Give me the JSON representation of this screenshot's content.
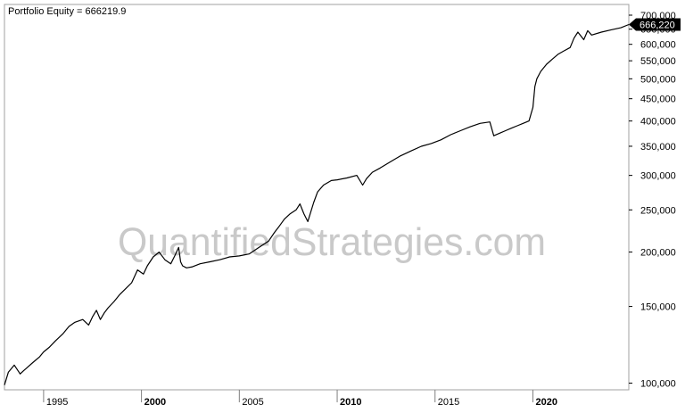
{
  "chart_data": {
    "type": "line",
    "title": "Portfolio Equity = 666219.9",
    "watermark": "QuantifiedStrategies.com",
    "y_scale": "log",
    "ylim": [
      97000,
      710000
    ],
    "xlim": [
      1993.0,
      2024.9
    ],
    "last_value_label": "666,220",
    "last_value": 666220,
    "grid": false,
    "colors": {
      "line": "#000000",
      "frame": "#a0a0a0",
      "axis_bg": "#ffffff",
      "last_badge": "#000000"
    },
    "x_ticks": [
      {
        "value": 1995,
        "label": "1995",
        "bold": false
      },
      {
        "value": 2000,
        "label": "2000",
        "bold": true
      },
      {
        "value": 2005,
        "label": "2005",
        "bold": false
      },
      {
        "value": 2010,
        "label": "2010",
        "bold": true
      },
      {
        "value": 2015,
        "label": "2015",
        "bold": false
      },
      {
        "value": 2020,
        "label": "2020",
        "bold": true
      }
    ],
    "y_ticks": [
      {
        "value": 100000,
        "label": "100,000"
      },
      {
        "value": 150000,
        "label": "150,000"
      },
      {
        "value": 200000,
        "label": "200,000"
      },
      {
        "value": 250000,
        "label": "250,000"
      },
      {
        "value": 300000,
        "label": "300,000"
      },
      {
        "value": 350000,
        "label": "350,000"
      },
      {
        "value": 400000,
        "label": "400,000"
      },
      {
        "value": 450000,
        "label": "450,000"
      },
      {
        "value": 500000,
        "label": "500,000"
      },
      {
        "value": 550000,
        "label": "550,000"
      },
      {
        "value": 600000,
        "label": "600,000"
      },
      {
        "value": 650000,
        "label": "650,000"
      },
      {
        "value": 700000,
        "label": "700,000"
      }
    ],
    "series": [
      {
        "x": [
          1993.0,
          1993.2,
          1993.5,
          1993.8,
          1994.0,
          1994.2,
          1994.5,
          1994.8,
          1995.0,
          1995.3,
          1995.6,
          1996.0,
          1996.3,
          1996.6,
          1997.0,
          1997.3,
          1997.5,
          1997.7,
          1997.9,
          1998.1,
          1998.3,
          1998.6,
          1998.9,
          1999.2,
          1999.5,
          1999.8,
          2000.1,
          2000.3,
          2000.6,
          2000.9,
          2001.2,
          2001.5,
          2001.7,
          2001.9,
          2002.0,
          2002.1,
          2002.3,
          2002.6,
          2003.0,
          2003.5,
          2004.0,
          2004.5,
          2005.0,
          2005.5,
          2006.0,
          2006.5,
          2006.8,
          2007.0,
          2007.3,
          2007.6,
          2007.9,
          2008.1,
          2008.3,
          2008.5,
          2008.8,
          2009.0,
          2009.3,
          2009.7,
          2010.0,
          2010.5,
          2011.0,
          2011.3,
          2011.5,
          2011.8,
          2012.2,
          2012.7,
          2013.2,
          2013.8,
          2014.3,
          2014.8,
          2015.3,
          2015.8,
          2016.3,
          2016.8,
          2017.3,
          2017.8,
          2018.0,
          2018.3,
          2018.6,
          2018.9,
          2019.2,
          2019.5,
          2019.8,
          2020.0,
          2020.1,
          2020.2,
          2020.4,
          2020.7,
          2021.0,
          2021.3,
          2021.6,
          2021.9,
          2022.1,
          2022.3,
          2022.6,
          2022.8,
          2023.0,
          2023.5,
          2024.0,
          2024.5,
          2024.9
        ],
        "y": [
          99000,
          106000,
          110000,
          105000,
          107000,
          109000,
          112000,
          115000,
          118000,
          121000,
          125000,
          130000,
          135000,
          138000,
          140000,
          136000,
          142000,
          147000,
          140000,
          145000,
          149000,
          154000,
          160000,
          165000,
          170000,
          182000,
          178000,
          186000,
          195000,
          200000,
          192000,
          188000,
          196000,
          205000,
          190000,
          186000,
          184000,
          185000,
          188000,
          190000,
          192000,
          195000,
          196000,
          198000,
          205000,
          212000,
          222000,
          228000,
          238000,
          245000,
          250000,
          258000,
          245000,
          235000,
          260000,
          275000,
          285000,
          292000,
          293000,
          296000,
          300000,
          285000,
          295000,
          305000,
          312000,
          322000,
          332000,
          342000,
          350000,
          355000,
          362000,
          372000,
          380000,
          388000,
          395000,
          398000,
          370000,
          375000,
          380000,
          385000,
          390000,
          395000,
          400000,
          430000,
          480000,
          500000,
          520000,
          540000,
          555000,
          570000,
          580000,
          590000,
          620000,
          640000,
          615000,
          645000,
          630000,
          640000,
          648000,
          655000,
          666220
        ]
      }
    ]
  }
}
